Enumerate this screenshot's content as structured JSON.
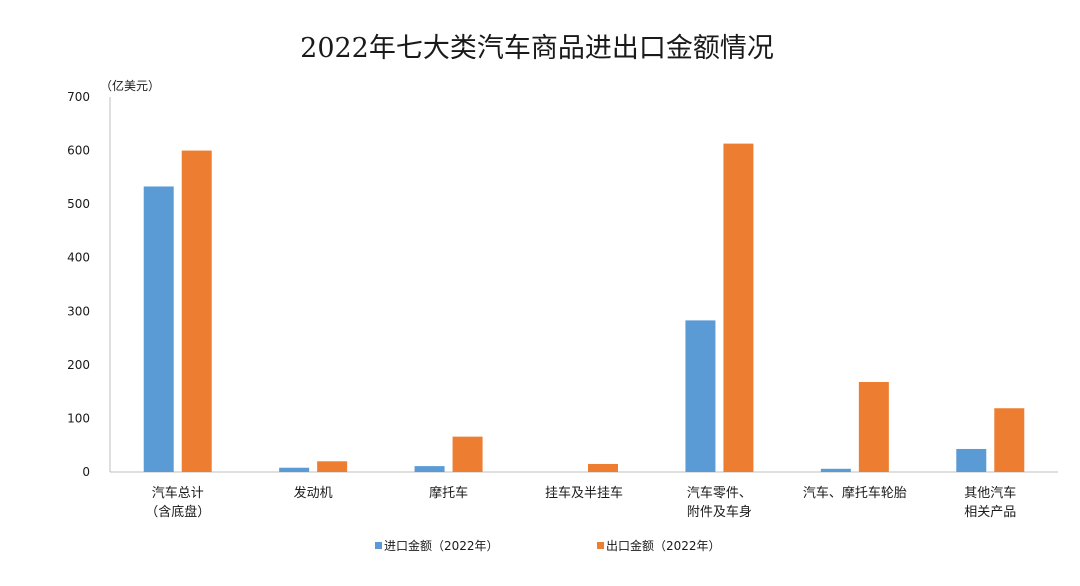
{
  "chart_data": {
    "type": "bar",
    "title": "2022年七大类汽车商品进出口金额情况",
    "unit_label": "（亿美元）",
    "xlabel": "",
    "ylabel": "",
    "ylim": [
      0,
      700
    ],
    "yticks": [
      0,
      100,
      200,
      300,
      400,
      500,
      600,
      700
    ],
    "grid": false,
    "legend_position": "bottom",
    "categories": [
      [
        "汽车总计",
        "（含底盘）"
      ],
      [
        "发动机"
      ],
      [
        "摩托车"
      ],
      [
        "挂车及半挂车"
      ],
      [
        "汽车零件、",
        "附件及车身"
      ],
      [
        "汽车、摩托车轮胎"
      ],
      [
        "其他汽车",
        "相关产品"
      ]
    ],
    "series": [
      {
        "name": "进口金额（2022年）",
        "color": "#5B9BD5",
        "values": [
          533,
          8,
          11,
          0,
          283,
          6,
          43
        ]
      },
      {
        "name": "出口金额（2022年）",
        "color": "#ED7D31",
        "values": [
          600,
          20,
          66,
          15,
          613,
          168,
          119
        ]
      }
    ]
  }
}
